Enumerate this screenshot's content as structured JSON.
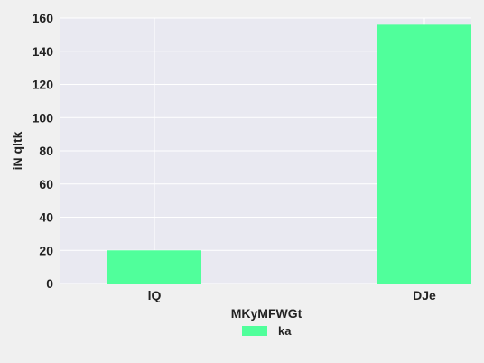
{
  "chart_data": {
    "type": "bar",
    "categories": [
      "lQ",
      "DJe"
    ],
    "series": [
      {
        "name": "ka",
        "values": [
          20,
          156
        ]
      }
    ],
    "title": "",
    "xlabel": "MKyMFWGt",
    "ylabel": "iN qltk",
    "ylim": [
      0,
      160
    ],
    "yticks": [
      0,
      20,
      40,
      60,
      80,
      100,
      120,
      140,
      160
    ],
    "grid": true,
    "legend_position": "bottom-center"
  },
  "colors": {
    "background": "#f0f0f0",
    "plot_area": "#e9e9f1",
    "grid": "#ffffff",
    "bar": "#50ff9b",
    "text": "#222222"
  }
}
